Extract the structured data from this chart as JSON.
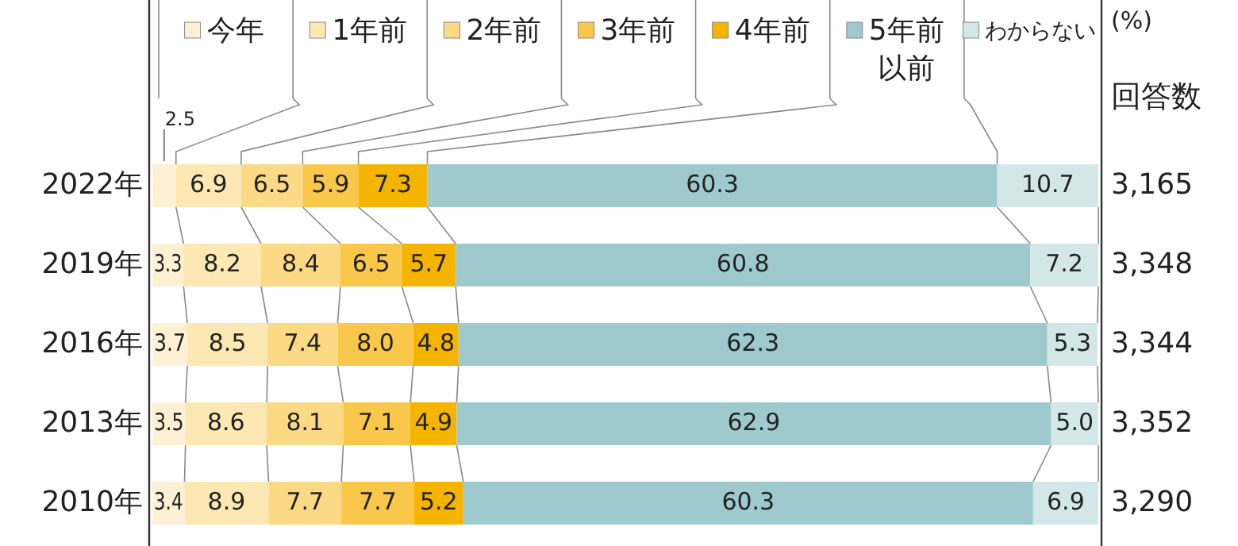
{
  "chart_data": {
    "type": "bar",
    "orientation": "horizontal",
    "stacked": true,
    "legend": "top",
    "categories": [
      "2022年",
      "2019年",
      "2016年",
      "2013年",
      "2010年"
    ],
    "series": [
      {
        "name": "今年",
        "color": "#fdf0d5",
        "values": [
          2.5,
          3.3,
          3.7,
          3.5,
          3.4
        ],
        "value_labels": [
          "2.5",
          "3.3",
          "3.7",
          "3.5",
          "3.4"
        ]
      },
      {
        "name": "1年前",
        "color": "#fde7b3",
        "values": [
          6.9,
          8.2,
          8.5,
          8.6,
          8.9
        ],
        "value_labels": [
          "6.9",
          "8.2",
          "8.5",
          "8.6",
          "8.9"
        ]
      },
      {
        "name": "2年前",
        "color": "#fcd985",
        "values": [
          6.5,
          8.4,
          7.4,
          8.1,
          7.7
        ],
        "value_labels": [
          "6.5",
          "8.4",
          "7.4",
          "8.1",
          "7.7"
        ]
      },
      {
        "name": "3年前",
        "color": "#f9c84a",
        "values": [
          5.9,
          6.5,
          8.0,
          7.1,
          7.7
        ],
        "value_labels": [
          "5.9",
          "6.5",
          "8.0",
          "7.1",
          "7.7"
        ]
      },
      {
        "name": "4年前",
        "color": "#f4b400",
        "values": [
          7.3,
          5.7,
          4.8,
          4.9,
          5.2
        ],
        "value_labels": [
          "7.3",
          "5.7",
          "4.8",
          "4.9",
          "5.2"
        ]
      },
      {
        "name": "5年前以前",
        "color": "#9ecacd",
        "values": [
          60.3,
          60.8,
          62.3,
          62.9,
          60.3
        ],
        "value_labels": [
          "60.3",
          "60.8",
          "62.3",
          "62.9",
          "60.3"
        ]
      },
      {
        "name": "わからない",
        "color": "#d3e7e8",
        "values": [
          10.7,
          7.2,
          5.3,
          5.0,
          6.9
        ],
        "value_labels": [
          "10.7",
          "7.2",
          "5.3",
          "5.0",
          "6.9"
        ]
      }
    ],
    "annotations": [
      "(%)",
      "回答数",
      "3,165",
      "3,348",
      "3,344",
      "3,352",
      "3,290"
    ]
  }
}
